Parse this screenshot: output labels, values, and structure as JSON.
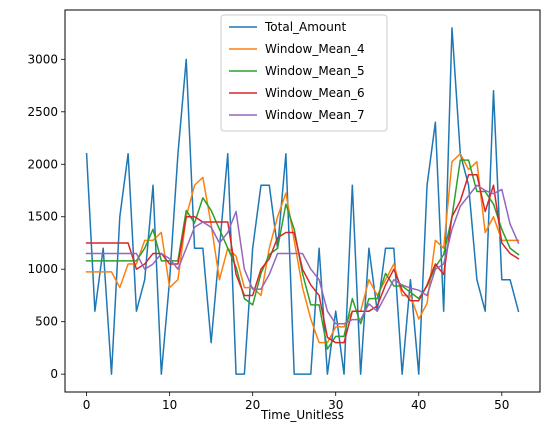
{
  "chart_data": {
    "type": "line",
    "title": "",
    "xlabel": "Time_Unitless",
    "ylabel": "",
    "xlim": [
      -2.6,
      54.6
    ],
    "ylim": [
      -170,
      3470
    ],
    "xticks": [
      0,
      10,
      20,
      30,
      40,
      50
    ],
    "yticks": [
      0,
      500,
      1000,
      1500,
      2000,
      2500,
      3000
    ],
    "grid": false,
    "legend_position": "top-center",
    "series": [
      {
        "name": "Total_Amount",
        "color": "#1f77b4",
        "x": [
          0,
          1,
          2,
          3,
          4,
          5,
          6,
          7,
          8,
          9,
          10,
          11,
          12,
          13,
          14,
          15,
          16,
          17,
          18,
          19,
          20,
          21,
          22,
          23,
          24,
          25,
          26,
          27,
          28,
          29,
          30,
          31,
          32,
          33,
          34,
          35,
          36,
          37,
          38,
          39,
          40,
          41,
          42,
          43,
          44,
          45,
          46,
          47,
          48,
          49,
          50,
          51,
          52
        ],
        "values": [
          2100,
          600,
          1200,
          0,
          1500,
          2100,
          600,
          900,
          1800,
          0,
          900,
          2100,
          3000,
          1200,
          1200,
          300,
          1200,
          2100,
          0,
          0,
          1200,
          1800,
          1800,
          1200,
          2100,
          0,
          0,
          0,
          1200,
          0,
          600,
          0,
          1800,
          0,
          1200,
          600,
          1200,
          1200,
          0,
          900,
          0,
          1800,
          2400,
          600,
          3300,
          2100,
          1800,
          900,
          600,
          2700,
          900,
          900,
          600
        ]
      },
      {
        "name": "Window_Mean_4",
        "color": "#ff7f0e",
        "x": [
          0,
          1,
          2,
          3,
          4,
          5,
          6,
          7,
          8,
          9,
          10,
          11,
          12,
          13,
          14,
          15,
          16,
          17,
          18,
          19,
          20,
          21,
          22,
          23,
          24,
          25,
          26,
          27,
          28,
          29,
          30,
          31,
          32,
          33,
          34,
          35,
          36,
          37,
          38,
          39,
          40,
          41,
          42,
          43,
          44,
          45,
          46,
          47,
          48,
          49,
          50,
          51,
          52
        ],
        "values": [
          975,
          975,
          975,
          975,
          825,
          1050,
          1050,
          1275,
          1275,
          1350,
          825,
          900,
          1500,
          1800,
          1875,
          1425,
          900,
          1200,
          1125,
          825,
          825,
          750,
          1200,
          1500,
          1725,
          1275,
          825,
          525,
          300,
          300,
          450,
          450,
          600,
          600,
          900,
          750,
          900,
          1050,
          750,
          750,
          525,
          675,
          1275,
          1200,
          2025,
          2100,
          1950,
          2025,
          1350,
          1500,
          1275,
          1275,
          1275
        ]
      },
      {
        "name": "Window_Mean_5",
        "color": "#2ca02c",
        "x": [
          0,
          1,
          2,
          3,
          4,
          5,
          6,
          7,
          8,
          9,
          10,
          11,
          12,
          13,
          14,
          15,
          16,
          17,
          18,
          19,
          20,
          21,
          22,
          23,
          24,
          25,
          26,
          27,
          28,
          29,
          30,
          31,
          32,
          33,
          34,
          35,
          36,
          37,
          38,
          39,
          40,
          41,
          42,
          43,
          44,
          45,
          46,
          47,
          48,
          49,
          50,
          51,
          52
        ],
        "values": [
          1080,
          1080,
          1080,
          1080,
          1080,
          1080,
          1080,
          1200,
          1380,
          1080,
          1080,
          1080,
          1560,
          1440,
          1680,
          1560,
          1380,
          1200,
          1020,
          720,
          660,
          960,
          1140,
          1200,
          1620,
          1380,
          960,
          660,
          660,
          240,
          360,
          360,
          720,
          480,
          720,
          720,
          960,
          840,
          840,
          780,
          720,
          840,
          1020,
          1140,
          1500,
          2040,
          2040,
          1740,
          1740,
          1620,
          1380,
          1200,
          1140
        ]
      },
      {
        "name": "Window_Mean_6",
        "color": "#d62728",
        "x": [
          0,
          1,
          2,
          3,
          4,
          5,
          6,
          7,
          8,
          9,
          10,
          11,
          12,
          13,
          14,
          15,
          16,
          17,
          18,
          19,
          20,
          21,
          22,
          23,
          24,
          25,
          26,
          27,
          28,
          29,
          30,
          31,
          32,
          33,
          34,
          35,
          36,
          37,
          38,
          39,
          40,
          41,
          42,
          43,
          44,
          45,
          46,
          47,
          48,
          49,
          50,
          51,
          52
        ],
        "values": [
          1250,
          1250,
          1250,
          1250,
          1250,
          1250,
          1000,
          1050,
          1150,
          1150,
          1050,
          1050,
          1500,
          1500,
          1450,
          1450,
          1450,
          1450,
          950,
          750,
          750,
          1000,
          1100,
          1300,
          1350,
          1350,
          1000,
          850,
          750,
          350,
          300,
          300,
          600,
          600,
          600,
          650,
          850,
          1000,
          800,
          700,
          700,
          850,
          1050,
          950,
          1500,
          1650,
          1900,
          1900,
          1550,
          1800,
          1250,
          1150,
          1100
        ]
      },
      {
        "name": "Window_Mean_7",
        "color": "#9467bd",
        "x": [
          0,
          1,
          2,
          3,
          4,
          5,
          6,
          7,
          8,
          9,
          10,
          11,
          12,
          13,
          14,
          15,
          16,
          17,
          18,
          19,
          20,
          21,
          22,
          23,
          24,
          25,
          26,
          27,
          28,
          29,
          30,
          31,
          32,
          33,
          34,
          35,
          36,
          37,
          38,
          39,
          40,
          41,
          42,
          43,
          44,
          45,
          46,
          47,
          48,
          49,
          50,
          51,
          52
        ],
        "values": [
          1150,
          1150,
          1150,
          1150,
          1150,
          1150,
          1150,
          1000,
          1050,
          1150,
          1100,
          1000,
          1200,
          1400,
          1450,
          1400,
          1250,
          1350,
          1550,
          1000,
          810,
          810,
          950,
          1150,
          1150,
          1150,
          1150,
          1000,
          900,
          600,
          480,
          480,
          520,
          520,
          670,
          600,
          750,
          900,
          850,
          820,
          800,
          750,
          1000,
          1050,
          1380,
          1600,
          1700,
          1800,
          1750,
          1720,
          1760,
          1430,
          1250
        ]
      }
    ]
  }
}
